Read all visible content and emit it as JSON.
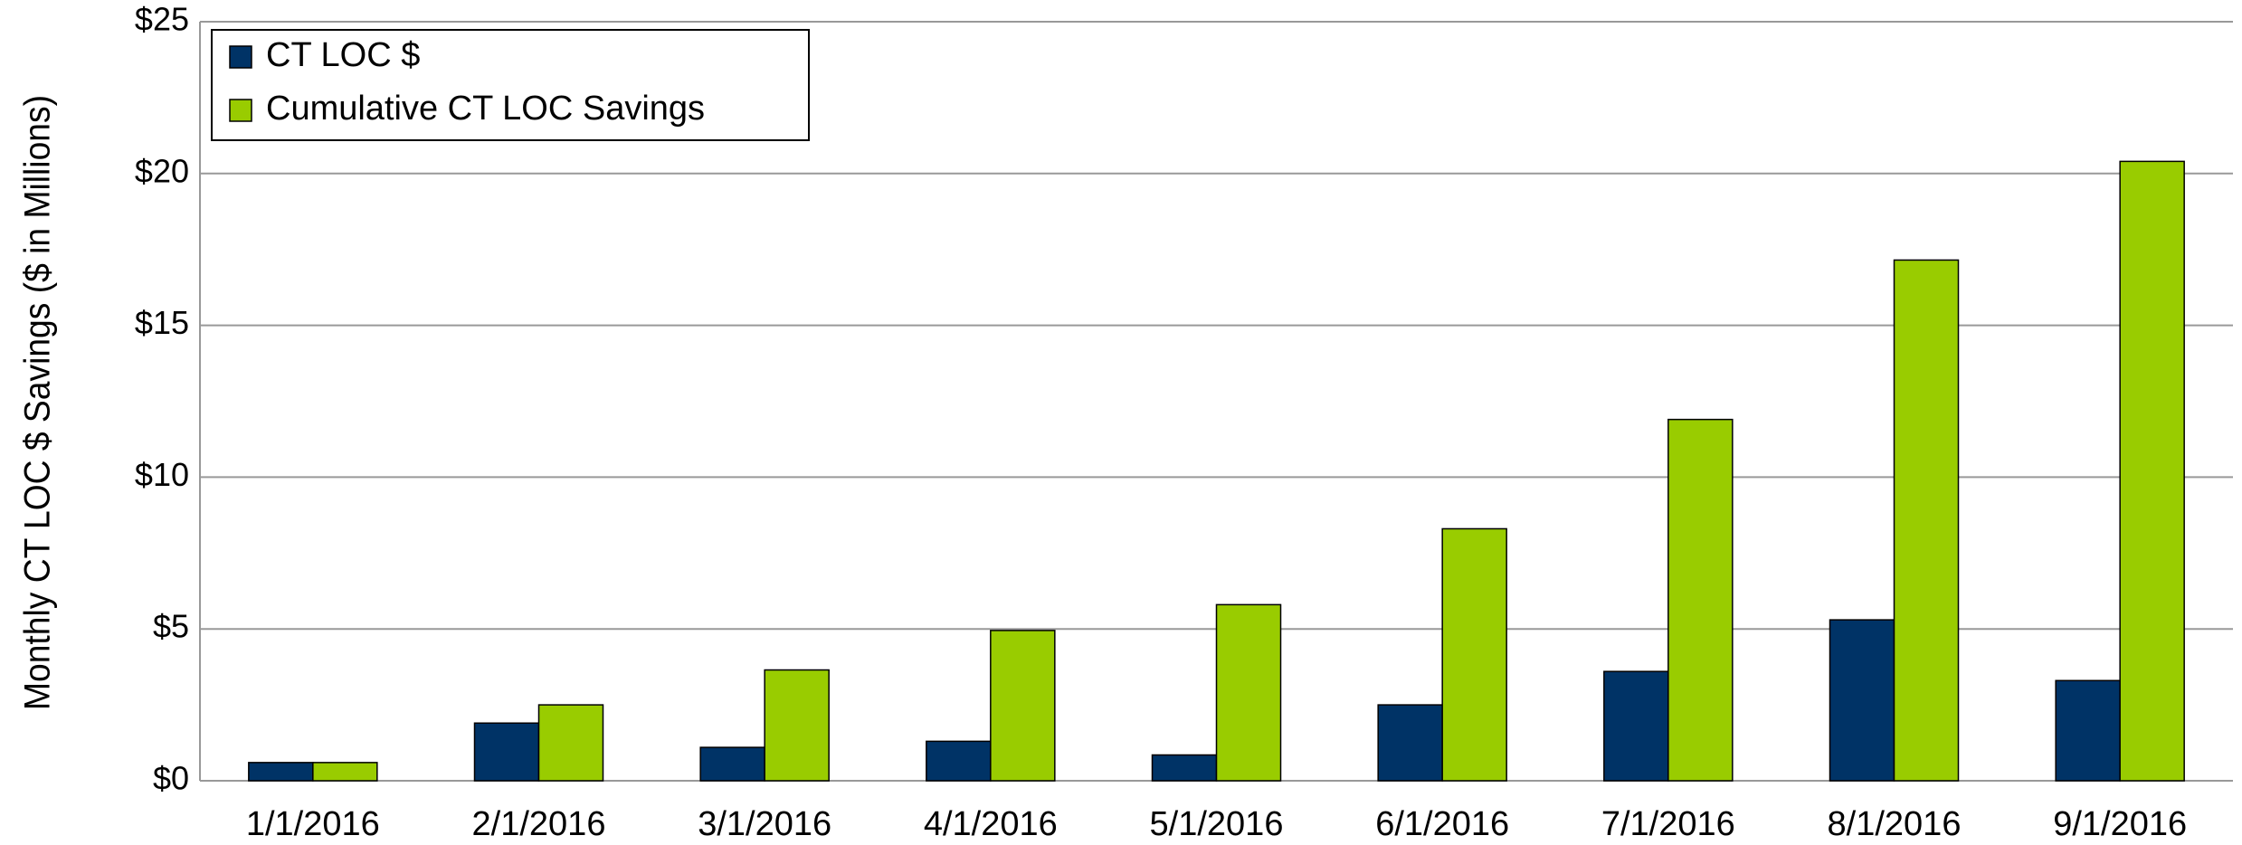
{
  "chart_data": {
    "type": "bar",
    "y_label": "Monthly  CT LOC $ Savings ($ in Millions)",
    "categories": [
      "1/1/2016",
      "2/1/2016",
      "3/1/2016",
      "4/1/2016",
      "5/1/2016",
      "6/1/2016",
      "7/1/2016",
      "8/1/2016",
      "9/1/2016"
    ],
    "series": [
      {
        "name": "CT LOC $",
        "color": "#003366",
        "values": [
          0.6,
          1.9,
          1.1,
          1.3,
          0.85,
          2.5,
          3.6,
          5.3,
          3.3
        ]
      },
      {
        "name": "Cumulative CT LOC Savings",
        "color": "#99cc00",
        "values": [
          0.6,
          2.5,
          3.65,
          4.95,
          5.8,
          8.3,
          11.9,
          17.15,
          20.4
        ]
      }
    ],
    "ylim": [
      0,
      25
    ],
    "yticks": [
      {
        "value": 0,
        "label": "$0"
      },
      {
        "value": 5,
        "label": "$5"
      },
      {
        "value": 10,
        "label": "$10"
      },
      {
        "value": 15,
        "label": "$15"
      },
      {
        "value": 20,
        "label": "$20"
      },
      {
        "value": 25,
        "label": "$25"
      }
    ],
    "grid": true,
    "legend": "top-left"
  }
}
